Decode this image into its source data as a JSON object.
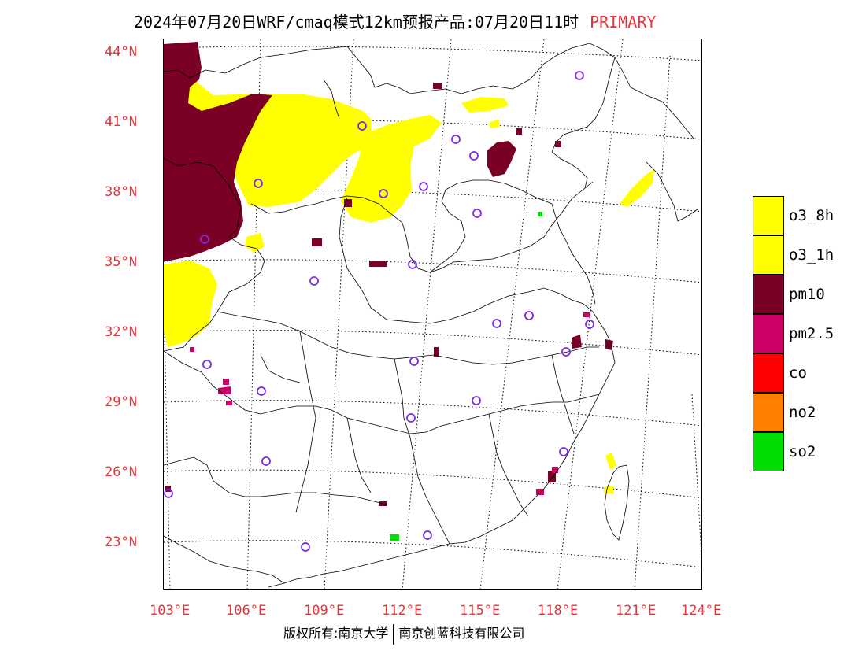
{
  "title": {
    "main": "2024年07月20日WRF/cmaq模式12km预报产品:07月20日11时",
    "tag": "PRIMARY",
    "tag_color": "#e8333a"
  },
  "axes": {
    "lat_labels": [
      "44°N",
      "41°N",
      "38°N",
      "35°N",
      "32°N",
      "29°N",
      "26°N",
      "23°N"
    ],
    "lon_labels": [
      "103°E",
      "106°E",
      "109°E",
      "112°E",
      "115°E",
      "118°E",
      "121°E",
      "124°E"
    ],
    "label_color": "#e8333a"
  },
  "legend": [
    {
      "label": "o3_8h",
      "color": "#ffff00"
    },
    {
      "label": "o3_1h",
      "color": "#ffff00"
    },
    {
      "label": "pm10",
      "color": "#7a0026"
    },
    {
      "label": "pm2.5",
      "color": "#cc0066"
    },
    {
      "label": "co",
      "color": "#ff0000"
    },
    {
      "label": "no2",
      "color": "#ff7f00"
    },
    {
      "label": "so2",
      "color": "#00dd00"
    }
  ],
  "footer": {
    "left": "版权所有:南京大学",
    "right": "南京创蓝科技有限公司"
  }
}
